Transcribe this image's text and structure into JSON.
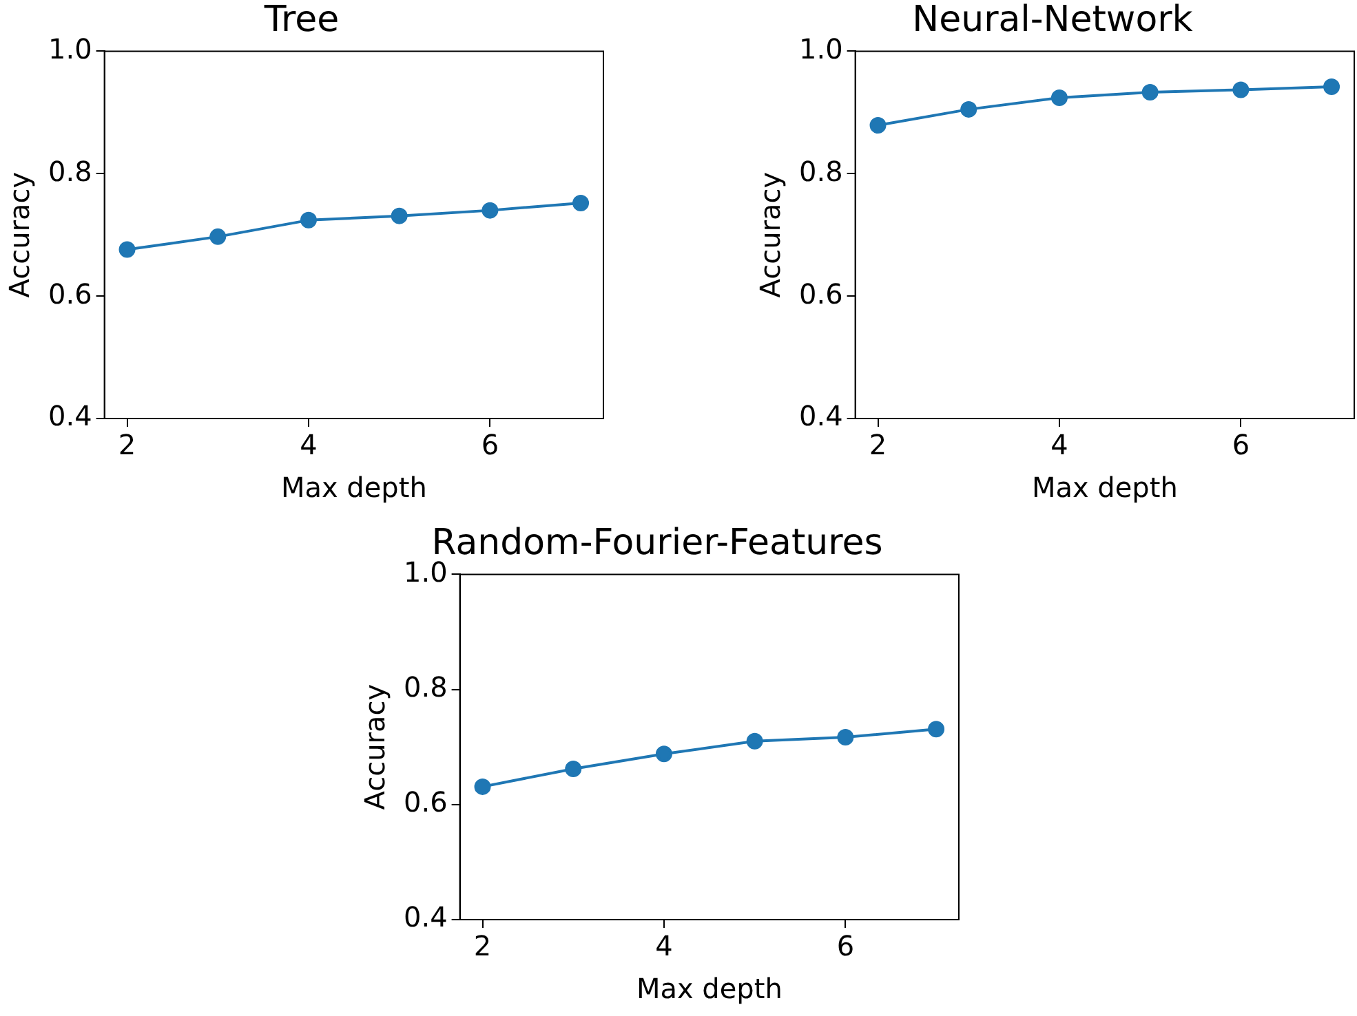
{
  "chart_data": [
    {
      "type": "line",
      "title": "Tree",
      "xlabel": "Max depth",
      "ylabel": "Accuracy",
      "x": [
        2,
        3,
        4,
        5,
        6,
        7
      ],
      "series": [
        {
          "color": "#1f77b4",
          "values": [
            0.676,
            0.697,
            0.724,
            0.731,
            0.74,
            0.752
          ]
        }
      ],
      "xlim": [
        1.75,
        7.25
      ],
      "xticks": [
        2,
        4,
        6
      ],
      "ylim": [
        0.4,
        1.0
      ],
      "yticks": [
        {
          "value": 0.4,
          "label": "0.4"
        },
        {
          "value": 0.6,
          "label": "0.6"
        },
        {
          "value": 0.8,
          "label": "0.8"
        },
        {
          "value": 1.0,
          "label": "1.0"
        }
      ],
      "grid": false,
      "marker": "circle"
    },
    {
      "type": "line",
      "title": "Neural-Network",
      "xlabel": "Max depth",
      "ylabel": "Accuracy",
      "x": [
        2,
        3,
        4,
        5,
        6,
        7
      ],
      "series": [
        {
          "color": "#1f77b4",
          "values": [
            0.879,
            0.905,
            0.924,
            0.933,
            0.937,
            0.942
          ]
        }
      ],
      "xlim": [
        1.75,
        7.25
      ],
      "xticks": [
        2,
        4,
        6
      ],
      "ylim": [
        0.4,
        1.0
      ],
      "yticks": [
        {
          "value": 0.4,
          "label": "0.4"
        },
        {
          "value": 0.6,
          "label": "0.6"
        },
        {
          "value": 0.8,
          "label": "0.8"
        },
        {
          "value": 1.0,
          "label": "1.0"
        }
      ],
      "grid": false,
      "marker": "circle"
    },
    {
      "type": "line",
      "title": "Random-Fourier-Features",
      "xlabel": "Max depth",
      "ylabel": "Accuracy",
      "x": [
        2,
        3,
        4,
        5,
        6,
        7
      ],
      "series": [
        {
          "color": "#1f77b4",
          "values": [
            0.631,
            0.662,
            0.688,
            0.71,
            0.717,
            0.731
          ]
        }
      ],
      "xlim": [
        1.75,
        7.25
      ],
      "xticks": [
        2,
        4,
        6
      ],
      "ylim": [
        0.4,
        1.0
      ],
      "yticks": [
        {
          "value": 0.4,
          "label": "0.4"
        },
        {
          "value": 0.6,
          "label": "0.6"
        },
        {
          "value": 0.8,
          "label": "0.8"
        },
        {
          "value": 1.0,
          "label": "1.0"
        }
      ],
      "grid": false,
      "marker": "circle"
    }
  ]
}
